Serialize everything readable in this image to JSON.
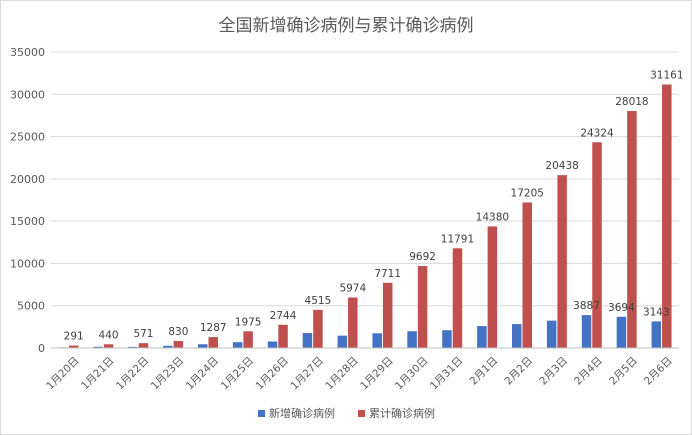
{
  "chart_data": {
    "type": "bar",
    "title": "全国新增确诊病例与累计确诊病例",
    "categories": [
      "1月20日",
      "1月21日",
      "1月22日",
      "1月23日",
      "1月24日",
      "1月25日",
      "1月26日",
      "1月27日",
      "1月28日",
      "1月29日",
      "1月30日",
      "1月31日",
      "2月1日",
      "2月2日",
      "2月3日",
      "2月4日",
      "2月5日",
      "2月6日"
    ],
    "series": [
      {
        "name": "新增确诊病例",
        "color": "#4472C4",
        "values": [
          77,
          149,
          131,
          259,
          444,
          688,
          769,
          1771,
          1459,
          1737,
          1982,
          2102,
          2590,
          2829,
          3235,
          3887,
          3694,
          3143
        ],
        "labels": [
          "",
          "",
          "",
          "",
          "",
          "",
          "",
          "",
          "",
          "",
          "",
          "",
          "",
          "",
          "",
          "3887",
          "3694",
          "3143"
        ]
      },
      {
        "name": "累计确诊病例",
        "color": "#C0504D",
        "values": [
          291,
          440,
          571,
          830,
          1287,
          1975,
          2744,
          4515,
          5974,
          7711,
          9692,
          11791,
          14380,
          17205,
          20438,
          24324,
          28018,
          31161
        ],
        "labels": [
          "291",
          "440",
          "571",
          "830",
          "1287",
          "1975",
          "2744",
          "4515",
          "5974",
          "7711",
          "9692",
          "11791",
          "14380",
          "17205",
          "20438",
          "24324",
          "28018",
          "31161"
        ]
      }
    ],
    "ylim": [
      0,
      35000
    ],
    "yticks": [
      0,
      5000,
      10000,
      15000,
      20000,
      25000,
      30000,
      35000
    ],
    "grid": true,
    "legend": "bottom"
  }
}
